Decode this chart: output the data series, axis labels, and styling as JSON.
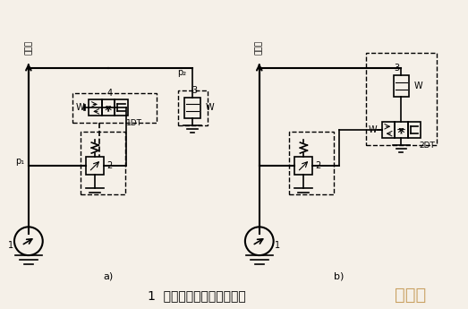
{
  "background_color": "#f5f0e8",
  "title_text": "1  双溢流阀式二级调压回路",
  "watermark_text": "豆星人",
  "label_a": "a)",
  "label_b": "b)",
  "subtitle_vertical_a": "任系统",
  "subtitle_vertical_b": "任系统",
  "figsize": [
    5.23,
    3.45
  ],
  "dpi": 100
}
